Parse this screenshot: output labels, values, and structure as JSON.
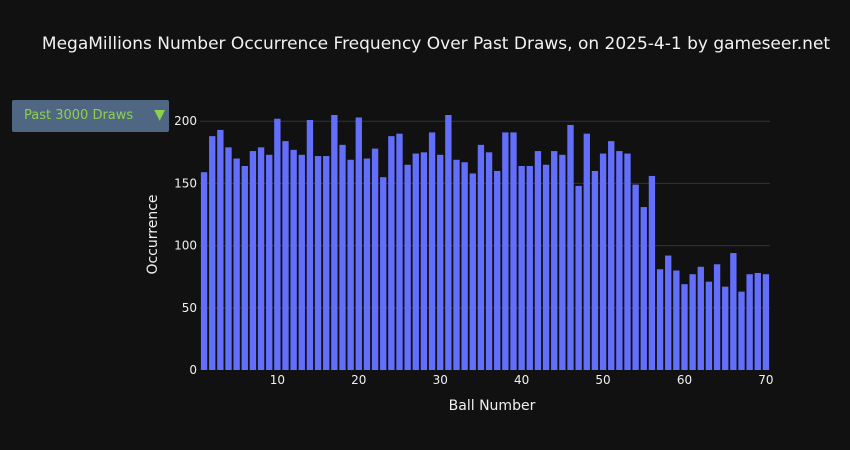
{
  "title": "MegaMillions Number Occurrence Frequency Over Past Draws, on 2025-4-1 by gameseer.net",
  "dropdown": {
    "selected": "Past 3000 Draws",
    "caret": "▼"
  },
  "colors": {
    "background": "#111111",
    "bar": "#636efa",
    "grid": "#283442",
    "accent": "#8cd04c",
    "button": "#506784"
  },
  "chart_data": {
    "type": "bar",
    "xlabel": "Ball Number",
    "ylabel": "Occurrence",
    "xlim": [
      0.5,
      70.5
    ],
    "ylim": [
      0,
      205
    ],
    "xticks": [
      10,
      20,
      30,
      40,
      50,
      60,
      70
    ],
    "yticks": [
      0,
      50,
      100,
      150,
      200
    ],
    "grid": true,
    "categories": [
      1,
      2,
      3,
      4,
      5,
      6,
      7,
      8,
      9,
      10,
      11,
      12,
      13,
      14,
      15,
      16,
      17,
      18,
      19,
      20,
      21,
      22,
      23,
      24,
      25,
      26,
      27,
      28,
      29,
      30,
      31,
      32,
      33,
      34,
      35,
      36,
      37,
      38,
      39,
      40,
      41,
      42,
      43,
      44,
      45,
      46,
      47,
      48,
      49,
      50,
      51,
      52,
      53,
      54,
      55,
      56,
      57,
      58,
      59,
      60,
      61,
      62,
      63,
      64,
      65,
      66,
      67,
      68,
      69,
      70
    ],
    "values": [
      159,
      188,
      193,
      179,
      170,
      164,
      176,
      179,
      173,
      202,
      184,
      177,
      173,
      201,
      172,
      172,
      205,
      181,
      169,
      203,
      170,
      178,
      155,
      188,
      190,
      165,
      174,
      175,
      191,
      173,
      205,
      169,
      167,
      158,
      181,
      175,
      160,
      191,
      191,
      164,
      164,
      176,
      165,
      176,
      173,
      197,
      148,
      190,
      160,
      174,
      184,
      176,
      174,
      149,
      131,
      156,
      81,
      92,
      80,
      69,
      77,
      83,
      71,
      85,
      67,
      94,
      63,
      77,
      78,
      77
    ]
  }
}
